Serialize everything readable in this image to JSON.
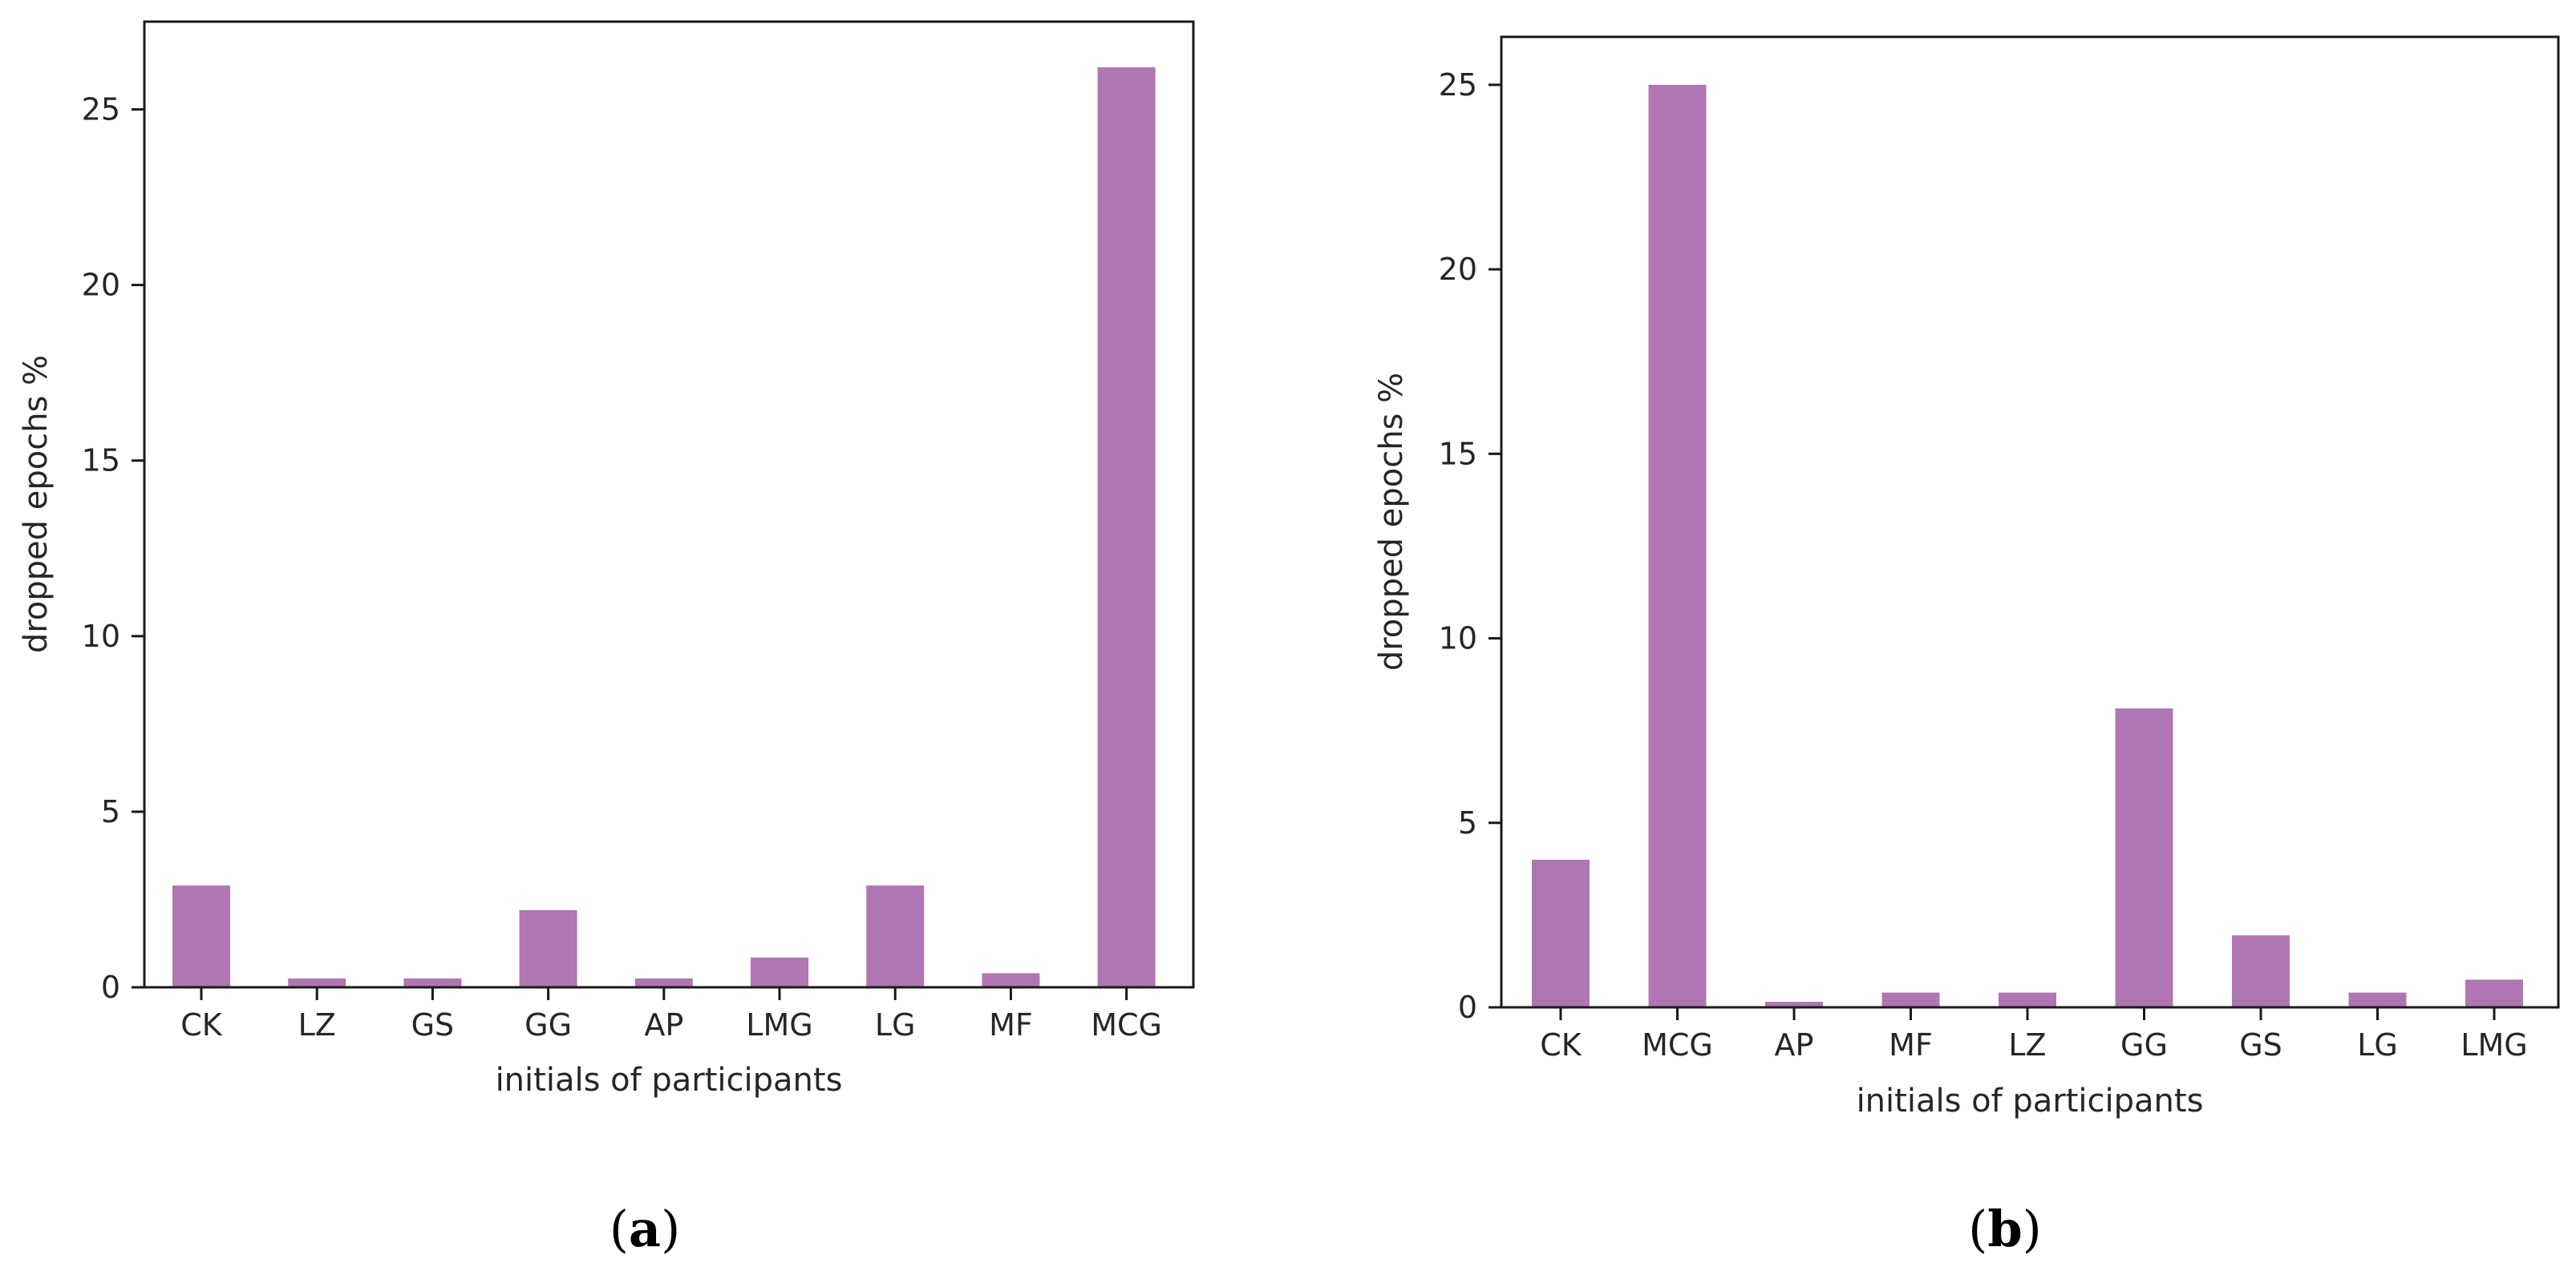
{
  "colors": {
    "bar": "#b075b3",
    "axis": "#1a1a1a",
    "text": "#262626"
  },
  "panels": [
    {
      "label_open": "(",
      "label_letter": "a",
      "label_close": ")"
    },
    {
      "label_open": "(",
      "label_letter": "b",
      "label_close": ")"
    }
  ],
  "chart_data": [
    {
      "type": "bar",
      "title": "",
      "xlabel": "initials of participants",
      "ylabel": "dropped epochs %",
      "categories": [
        "CK",
        "LZ",
        "GS",
        "GG",
        "AP",
        "LMG",
        "LG",
        "MF",
        "MCG"
      ],
      "values": [
        2.9,
        0.25,
        0.25,
        2.2,
        0.25,
        0.85,
        2.9,
        0.4,
        26.2
      ],
      "yticks": [
        0,
        5,
        10,
        15,
        20,
        25
      ],
      "ylim": [
        0,
        27.5
      ],
      "grid": false,
      "legend": false
    },
    {
      "type": "bar",
      "title": "",
      "xlabel": "initials of participants",
      "ylabel": "dropped epochs %",
      "categories": [
        "CK",
        "MCG",
        "AP",
        "MF",
        "LZ",
        "GG",
        "GS",
        "LG",
        "LMG"
      ],
      "values": [
        4.0,
        25.0,
        0.15,
        0.4,
        0.4,
        8.1,
        1.95,
        0.4,
        0.75
      ],
      "yticks": [
        0,
        5,
        10,
        15,
        20,
        25
      ],
      "ylim": [
        0,
        26.3
      ],
      "grid": false,
      "legend": false
    }
  ]
}
